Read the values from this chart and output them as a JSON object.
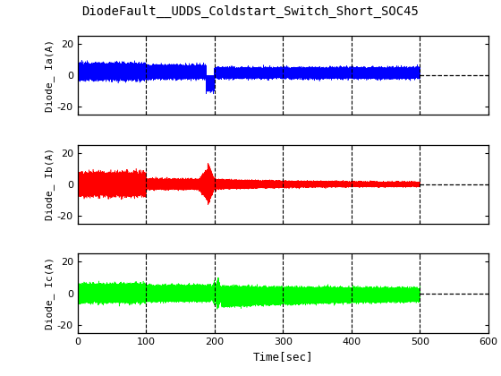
{
  "title": "DiodeFault__UDDS_Coldstart_Switch_Short_SOC45",
  "title_color": "#000000",
  "subplots": [
    {
      "ylabel": "Diode_ Ia(A)",
      "color": "#0000FF",
      "ylim": [
        -25,
        25
      ],
      "yticks": [
        -20,
        0,
        20
      ]
    },
    {
      "ylabel": "Diode_ Ib(A)",
      "color": "#FF0000",
      "ylim": [
        -25,
        25
      ],
      "yticks": [
        -20,
        0,
        20
      ]
    },
    {
      "ylabel": "Diode_ Ic(A)",
      "color": "#00FF00",
      "ylim": [
        -25,
        25
      ],
      "yticks": [
        -20,
        0,
        20
      ]
    }
  ],
  "xlim": [
    0,
    600
  ],
  "xticks": [
    0,
    100,
    200,
    300,
    400,
    500,
    600
  ],
  "xlabel": "Time[sec]",
  "vlines": [
    100,
    200,
    300,
    400,
    500
  ],
  "signal_end": 500,
  "background_color": "#FFFFFF",
  "ax_background": "#FFFFFF",
  "seed": 42,
  "fs": 500
}
